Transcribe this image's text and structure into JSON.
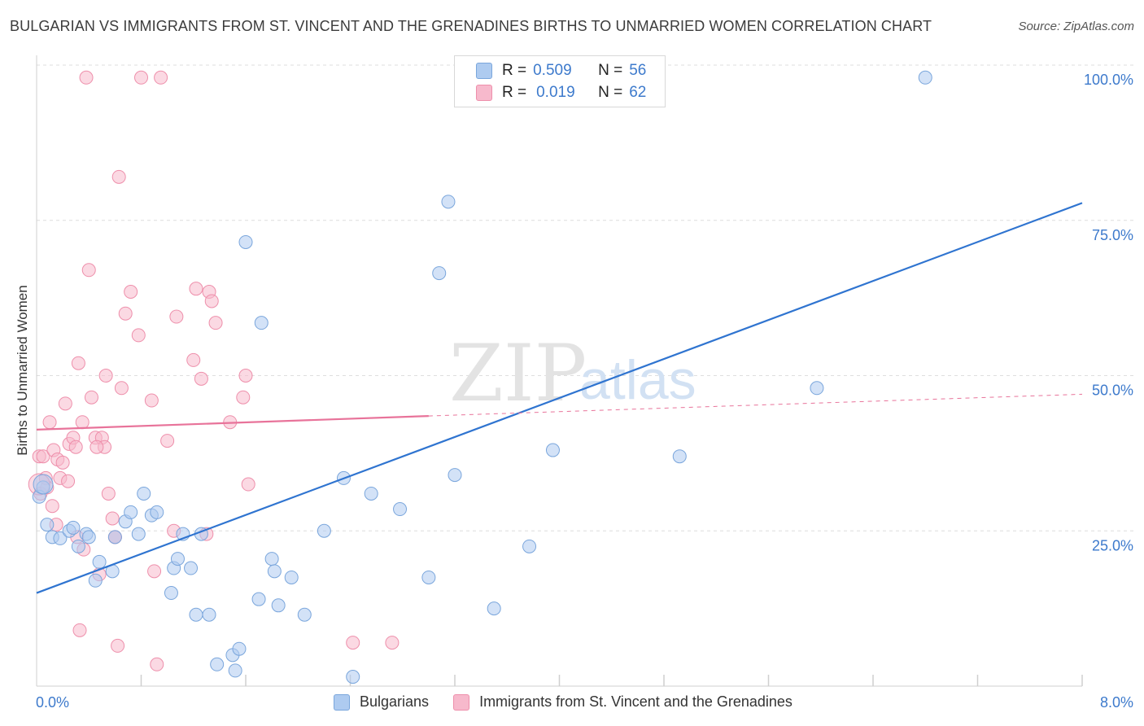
{
  "header": {
    "title": "BULGARIAN VS IMMIGRANTS FROM ST. VINCENT AND THE GRENADINES BIRTHS TO UNMARRIED WOMEN CORRELATION CHART",
    "source": "Source: ZipAtlas.com"
  },
  "legend": {
    "r_label": "R =",
    "n_label": "N =",
    "rows": [
      {
        "r": "0.509",
        "n": "56"
      },
      {
        "r": "0.019",
        "n": "62"
      }
    ]
  },
  "bottom_legend": {
    "items": [
      "Bulgarians",
      "Immigrants from St. Vincent and the Grenadines"
    ]
  },
  "colors": {
    "blue_fill": "#aecbf0",
    "blue_stroke": "#7aa6dc",
    "blue_line": "#2f74d0",
    "pink_fill": "#f7b9cc",
    "pink_stroke": "#ee8fab",
    "pink_line": "#e8739a",
    "axis_text": "#3d7acc"
  },
  "watermark": {
    "zip": "ZIP",
    "atlas": "atlas"
  },
  "chart_data": {
    "type": "scatter",
    "title": "BULGARIAN VS IMMIGRANTS FROM ST. VINCENT AND THE GRENADINES BIRTHS TO UNMARRIED WOMEN CORRELATION CHART",
    "xlabel": "",
    "ylabel": "Births to Unmarried Women",
    "xlim": [
      0,
      8
    ],
    "ylim": [
      0,
      100
    ],
    "x_tick_labels": [
      "0.0%",
      "8.0%"
    ],
    "y_tick_labels": [
      "100.0%",
      "75.0%",
      "50.0%",
      "25.0%"
    ],
    "y_tick_values": [
      100,
      75,
      50,
      25
    ],
    "grid": true,
    "series": [
      {
        "name": "Bulgarians",
        "r": 0.509,
        "n": 56,
        "trend": {
          "x": [
            0,
            8
          ],
          "y": [
            15.0,
            77.8
          ]
        },
        "points": [
          [
            0.02,
            30.5
          ],
          [
            0.05,
            32.0
          ],
          [
            0.08,
            26.0
          ],
          [
            0.12,
            24.0
          ],
          [
            0.18,
            23.8
          ],
          [
            0.25,
            25.0
          ],
          [
            0.28,
            25.5
          ],
          [
            0.32,
            22.5
          ],
          [
            0.38,
            24.5
          ],
          [
            0.4,
            24.0
          ],
          [
            0.45,
            17.0
          ],
          [
            0.48,
            20.0
          ],
          [
            0.58,
            18.5
          ],
          [
            0.6,
            24.0
          ],
          [
            0.68,
            26.5
          ],
          [
            0.72,
            28.0
          ],
          [
            0.78,
            24.5
          ],
          [
            0.82,
            31.0
          ],
          [
            0.88,
            27.5
          ],
          [
            0.92,
            28.0
          ],
          [
            1.03,
            15.0
          ],
          [
            1.05,
            19.0
          ],
          [
            1.08,
            20.5
          ],
          [
            1.12,
            24.5
          ],
          [
            1.18,
            19.0
          ],
          [
            1.22,
            11.5
          ],
          [
            1.26,
            24.5
          ],
          [
            1.32,
            11.5
          ],
          [
            1.38,
            3.5
          ],
          [
            1.5,
            5.0
          ],
          [
            1.52,
            2.5
          ],
          [
            1.55,
            6.0
          ],
          [
            1.6,
            71.5
          ],
          [
            1.7,
            14.0
          ],
          [
            1.72,
            58.5
          ],
          [
            1.8,
            20.5
          ],
          [
            1.82,
            18.5
          ],
          [
            1.85,
            13.0
          ],
          [
            1.95,
            17.5
          ],
          [
            2.05,
            11.5
          ],
          [
            2.2,
            25.0
          ],
          [
            2.35,
            33.5
          ],
          [
            2.42,
            1.5
          ],
          [
            2.56,
            31.0
          ],
          [
            2.78,
            28.5
          ],
          [
            3.0,
            17.5
          ],
          [
            3.08,
            66.5
          ],
          [
            3.15,
            78.0
          ],
          [
            3.2,
            34.0
          ],
          [
            3.48,
            98.0
          ],
          [
            3.5,
            12.5
          ],
          [
            3.77,
            22.5
          ],
          [
            3.95,
            38.0
          ],
          [
            4.92,
            37.0
          ],
          [
            5.97,
            48.0
          ],
          [
            6.8,
            98.0
          ]
        ]
      },
      {
        "name": "Immigrants from St. Vincent and the Grenadines",
        "r": 0.019,
        "n": 62,
        "trend": {
          "x": [
            0,
            3.0
          ],
          "y": [
            41.3,
            43.5
          ],
          "dashed_to": {
            "x": 8,
            "y": 47.0
          }
        },
        "points": [
          [
            0.02,
            37.0
          ],
          [
            0.03,
            31.0
          ],
          [
            0.05,
            37.0
          ],
          [
            0.08,
            32.0
          ],
          [
            0.1,
            42.5
          ],
          [
            0.12,
            29.0
          ],
          [
            0.13,
            38.0
          ],
          [
            0.15,
            26.0
          ],
          [
            0.16,
            36.5
          ],
          [
            0.18,
            33.5
          ],
          [
            0.2,
            36.0
          ],
          [
            0.22,
            45.5
          ],
          [
            0.24,
            33.0
          ],
          [
            0.25,
            39.0
          ],
          [
            0.28,
            40.0
          ],
          [
            0.3,
            38.5
          ],
          [
            0.31,
            24.0
          ],
          [
            0.32,
            52.0
          ],
          [
            0.33,
            9.0
          ],
          [
            0.35,
            42.5
          ],
          [
            0.38,
            98.0
          ],
          [
            0.4,
            67.0
          ],
          [
            0.42,
            46.5
          ],
          [
            0.45,
            40.0
          ],
          [
            0.48,
            18.0
          ],
          [
            0.5,
            40.0
          ],
          [
            0.52,
            38.5
          ],
          [
            0.53,
            50.0
          ],
          [
            0.55,
            31.0
          ],
          [
            0.58,
            27.0
          ],
          [
            0.6,
            24.0
          ],
          [
            0.62,
            6.5
          ],
          [
            0.63,
            82.0
          ],
          [
            0.65,
            48.0
          ],
          [
            0.68,
            60.0
          ],
          [
            0.72,
            63.5
          ],
          [
            0.78,
            56.5
          ],
          [
            0.8,
            98.0
          ],
          [
            0.88,
            46.0
          ],
          [
            0.9,
            18.5
          ],
          [
            0.92,
            3.5
          ],
          [
            0.95,
            98.0
          ],
          [
            1.0,
            39.5
          ],
          [
            1.05,
            25.0
          ],
          [
            1.07,
            59.5
          ],
          [
            1.2,
            52.5
          ],
          [
            1.22,
            64.0
          ],
          [
            1.26,
            49.5
          ],
          [
            1.32,
            63.5
          ],
          [
            1.34,
            62.0
          ],
          [
            1.37,
            58.5
          ],
          [
            1.48,
            42.5
          ],
          [
            1.58,
            46.5
          ],
          [
            1.6,
            50.0
          ],
          [
            1.62,
            32.5
          ],
          [
            2.42,
            7.0
          ],
          [
            2.72,
            7.0
          ],
          [
            0.07,
            33.5
          ],
          [
            0.36,
            22.0
          ],
          [
            1.3,
            24.5
          ],
          [
            0.6,
            24.0
          ],
          [
            0.46,
            38.5
          ]
        ]
      }
    ]
  }
}
